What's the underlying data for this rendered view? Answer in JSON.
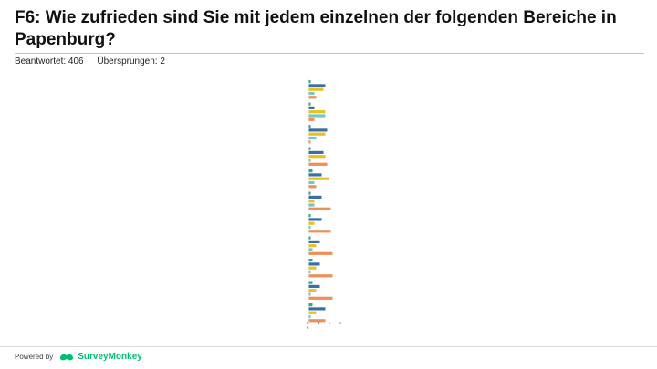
{
  "header": {
    "title": "F6: Wie zufrieden sind Sie mit jedem einzelnen der folgenden Bereiche in Papenburg?"
  },
  "stats": {
    "answered": "Beantwortet: 406",
    "skipped": "Übersprungen: 2"
  },
  "footer": {
    "powered_by": "Powered by",
    "brand": "SurveyMonkey",
    "brand_color": "#00bf6f"
  },
  "chart_data": {
    "type": "bar",
    "orientation": "horizontal",
    "categories": [
      "",
      "",
      "",
      "",
      "",
      "",
      "",
      "",
      "",
      "",
      ""
    ],
    "series": [
      {
        "color": "#2aa982",
        "values": [
          1,
          1,
          1,
          1,
          2,
          1,
          1,
          1,
          2,
          2,
          2
        ]
      },
      {
        "color": "#3c6ea6",
        "values": [
          9,
          3,
          10,
          8,
          7,
          7,
          7,
          6,
          6,
          6,
          9
        ]
      },
      {
        "color": "#e8c21e",
        "values": [
          8,
          9,
          9,
          9,
          11,
          3,
          3,
          4,
          4,
          4,
          4
        ]
      },
      {
        "color": "#74c6c9",
        "values": [
          3,
          9,
          4,
          1,
          3,
          3,
          1,
          2,
          1,
          1,
          1
        ]
      },
      {
        "color": "#ef8e55",
        "values": [
          4,
          3,
          1,
          10,
          4,
          12,
          12,
          13,
          13,
          13,
          9
        ]
      }
    ],
    "legend": [
      "",
      "",
      "",
      "",
      ""
    ],
    "legend_position": "bottom",
    "grid": false
  }
}
